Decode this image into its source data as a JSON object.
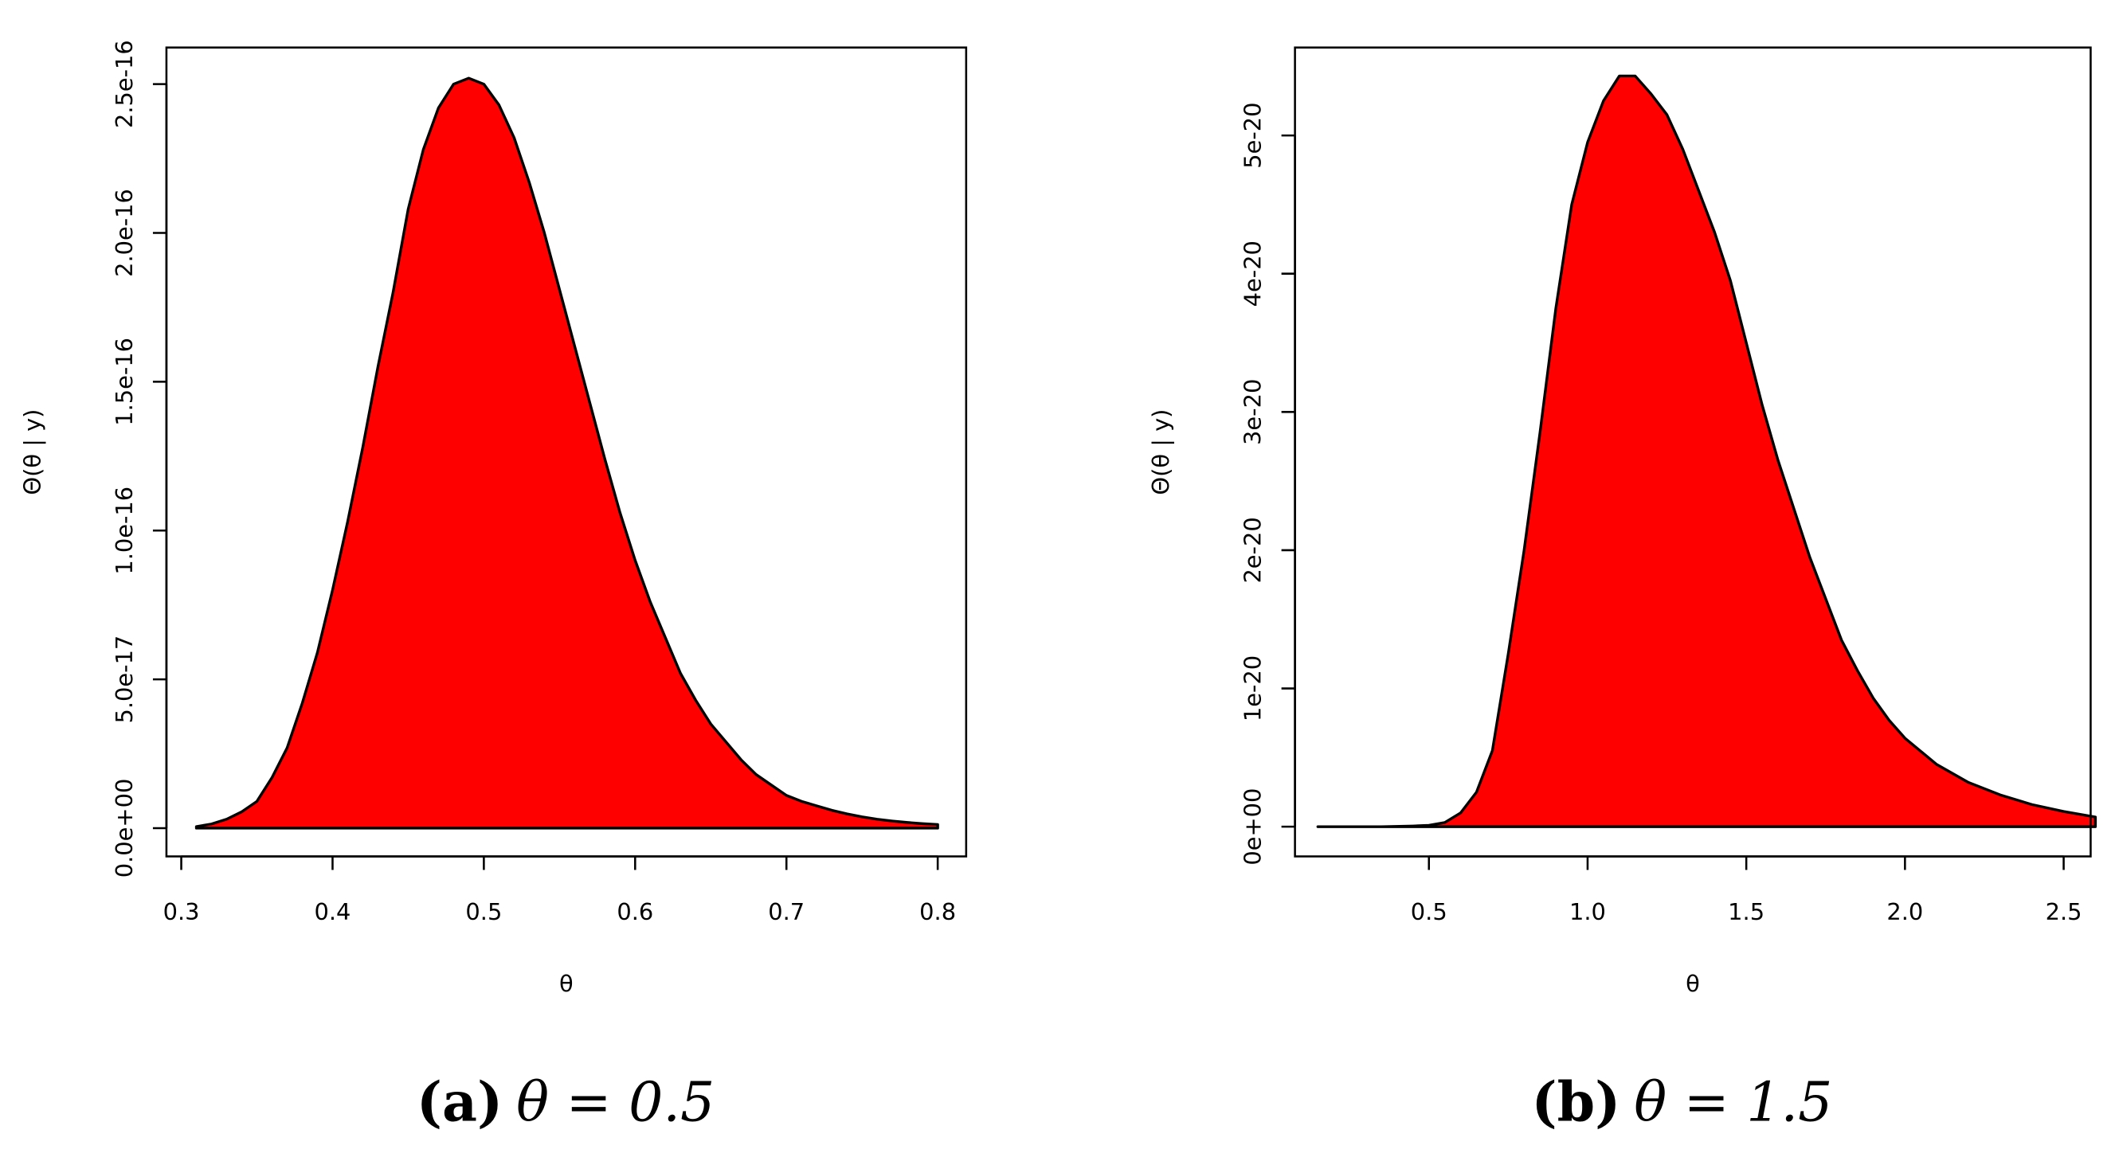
{
  "chart_data": [
    {
      "type": "area",
      "caption_label": "(a)",
      "caption": "θ = 0.5",
      "x_label": "θ",
      "y_label": "Θ(θ | y)",
      "color": "#ff0000",
      "x": [
        0.31,
        0.32,
        0.33,
        0.34,
        0.35,
        0.36,
        0.37,
        0.38,
        0.39,
        0.4,
        0.41,
        0.42,
        0.43,
        0.44,
        0.45,
        0.46,
        0.47,
        0.48,
        0.49,
        0.5,
        0.51,
        0.52,
        0.53,
        0.54,
        0.55,
        0.56,
        0.57,
        0.58,
        0.59,
        0.6,
        0.61,
        0.62,
        0.63,
        0.64,
        0.65,
        0.66,
        0.67,
        0.68,
        0.69,
        0.7,
        0.71,
        0.72,
        0.73,
        0.74,
        0.75,
        0.76,
        0.77,
        0.78,
        0.79,
        0.8
      ],
      "values": [
        5e-19,
        1.4e-18,
        3e-18,
        5.5e-18,
        9e-18,
        1.7e-17,
        2.7e-17,
        4.2e-17,
        5.9e-17,
        8e-17,
        1.03e-16,
        1.28e-16,
        1.55e-16,
        1.8e-16,
        2.08e-16,
        2.28e-16,
        2.42e-16,
        2.5e-16,
        2.52e-16,
        2.5e-16,
        2.43e-16,
        2.32e-16,
        2.17e-16,
        2e-16,
        1.81e-16,
        1.62e-16,
        1.43e-16,
        1.24e-16,
        1.06e-16,
        9e-17,
        7.6e-17,
        6.4e-17,
        5.2e-17,
        4.3e-17,
        3.5e-17,
        2.9e-17,
        2.3e-17,
        1.8e-17,
        1.45e-17,
        1.1e-17,
        9e-18,
        7.5e-18,
        6e-18,
        4.8e-18,
        3.8e-18,
        3e-18,
        2.4e-18,
        1.9e-18,
        1.5e-18,
        1.2e-18
      ],
      "xlim": [
        0.2902,
        0.8188
      ],
      "ylim": [
        -9.5e-18,
        2.623e-16
      ],
      "xticks": [
        0.3,
        0.4,
        0.5,
        0.6,
        0.7,
        0.8
      ],
      "yticks": [
        {
          "value": 0,
          "label": "0.0e+00"
        },
        {
          "value": 5e-17,
          "label": "5.0e-17"
        },
        {
          "value": 1e-16,
          "label": "1.0e-16"
        },
        {
          "value": 1.5e-16,
          "label": "1.5e-16"
        },
        {
          "value": 2e-16,
          "label": "2.0e-16"
        },
        {
          "value": 2.5e-16,
          "label": "2.5e-16"
        }
      ]
    },
    {
      "type": "area",
      "caption_label": "(b)",
      "caption": "θ = 1.5",
      "x_label": "θ",
      "y_label": "Θ(θ | y)",
      "color": "#ff0000",
      "x": [
        0.15,
        0.25,
        0.35,
        0.45,
        0.5,
        0.55,
        0.6,
        0.65,
        0.7,
        0.75,
        0.8,
        0.85,
        0.9,
        0.95,
        1.0,
        1.05,
        1.1,
        1.15,
        1.2,
        1.25,
        1.3,
        1.35,
        1.4,
        1.45,
        1.5,
        1.55,
        1.6,
        1.65,
        1.7,
        1.75,
        1.8,
        1.85,
        1.9,
        1.95,
        2.0,
        2.1,
        2.2,
        2.3,
        2.4,
        2.5,
        2.6
      ],
      "values": [
        0,
        0,
        0,
        5e-23,
        1e-22,
        3e-22,
        1e-21,
        2.5e-21,
        5.5e-21,
        1.25e-20,
        2e-20,
        2.85e-20,
        3.75e-20,
        4.5e-20,
        4.95e-20,
        5.25e-20,
        5.43e-20,
        5.43e-20,
        5.3e-20,
        5.15e-20,
        4.9e-20,
        4.6e-20,
        4.3e-20,
        3.95e-20,
        3.5e-20,
        3.05e-20,
        2.65e-20,
        2.3e-20,
        1.95e-20,
        1.65e-20,
        1.35e-20,
        1.13e-20,
        9.3e-21,
        7.7e-21,
        6.4e-21,
        4.5e-21,
        3.2e-21,
        2.3e-21,
        1.6e-21,
        1.1e-21,
        7e-22
      ],
      "xlim": [
        0.078,
        2.585
      ],
      "ylim": [
        -2.15e-21,
        5.636e-20
      ],
      "xticks": [
        0.5,
        {
          "value": 1,
          "label": "1.0"
        },
        1.5,
        {
          "value": 2,
          "label": "2.0"
        },
        2.5
      ],
      "yticks": [
        {
          "value": 0,
          "label": "0e+00"
        },
        {
          "value": 1e-20,
          "label": "1e-20"
        },
        {
          "value": 2e-20,
          "label": "2e-20"
        },
        {
          "value": 3e-20,
          "label": "3e-20"
        },
        {
          "value": 4e-20,
          "label": "4e-20"
        },
        {
          "value": 5e-20,
          "label": "5e-20"
        }
      ]
    }
  ]
}
